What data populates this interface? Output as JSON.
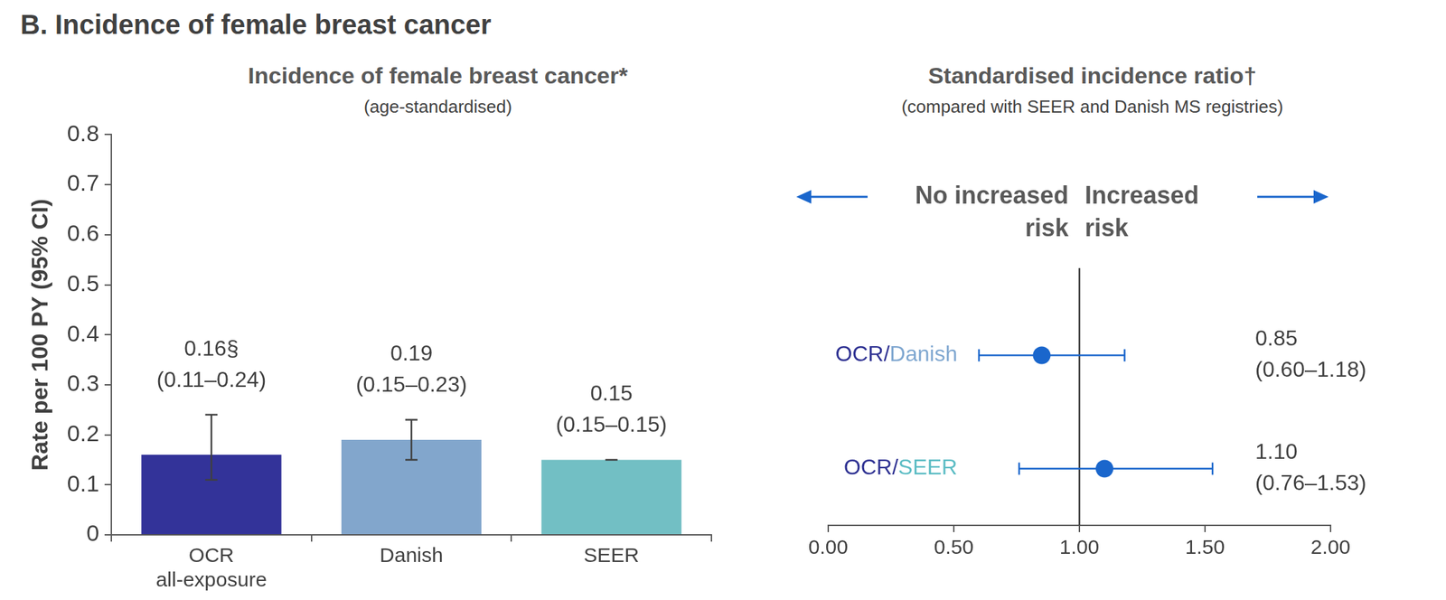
{
  "heading": "B. Incidence of female breast cancer",
  "chart_data": [
    {
      "type": "bar",
      "title": "Incidence of female breast cancer*",
      "subtitle": "(age-standardised)",
      "y_label": "Rate per 100 PY (95% CI)",
      "categories": [
        [
          "OCR",
          "all-exposure"
        ],
        "Danish",
        "SEER"
      ],
      "values": [
        0.16,
        0.19,
        0.15
      ],
      "value_labels": [
        [
          "0.16§",
          "(0.11–0.24)"
        ],
        [
          "0.19",
          "(0.15–0.23)"
        ],
        [
          "0.15",
          "(0.15–0.15)"
        ]
      ],
      "ci_lower": [
        0.11,
        0.15,
        0.15
      ],
      "ci_upper": [
        0.24,
        0.23,
        0.15
      ],
      "colors": [
        "#333399",
        "#82a6cc",
        "#72bfc4"
      ],
      "ylim": [
        0,
        0.8
      ],
      "yticks": [
        0,
        0.1,
        0.2,
        0.3,
        0.4,
        0.5,
        0.6,
        0.7,
        0.8
      ],
      "grid": false,
      "data_labels": true
    },
    {
      "type": "scatter",
      "orientation": "horizontal",
      "title": "Standardised incidence ratio†",
      "subtitle": "(compared with SEER and Danish MS registries)",
      "categories": [
        "OCR/Danish",
        "OCR/SEER"
      ],
      "values": [
        0.85,
        1.1
      ],
      "value_labels": [
        [
          "0.85",
          "(0.60–1.18)"
        ],
        [
          "1.10",
          "(0.76–1.53)"
        ]
      ],
      "ci_lower": [
        0.6,
        0.76
      ],
      "ci_upper": [
        1.18,
        1.53
      ],
      "color": "#1a66cc",
      "marker": "circle",
      "label_colors": [
        [
          "#2e3192",
          "#7fa7d0"
        ],
        [
          "#2e3192",
          "#5bbcc4"
        ]
      ],
      "reference": 1,
      "annotations": [
        [
          "No increased",
          "risk"
        ],
        [
          "Increased",
          "risk"
        ]
      ],
      "xlim": [
        0,
        2
      ],
      "xticks": [
        {
          "value": 0,
          "label": "0.00"
        },
        {
          "value": 0.5,
          "label": "0.50"
        },
        {
          "value": 1,
          "label": "1.00"
        },
        {
          "value": 1.5,
          "label": "1.50"
        },
        {
          "value": 2,
          "label": "2.00"
        }
      ],
      "grid": false,
      "tick_labels": "x",
      "data_labels": true
    }
  ]
}
